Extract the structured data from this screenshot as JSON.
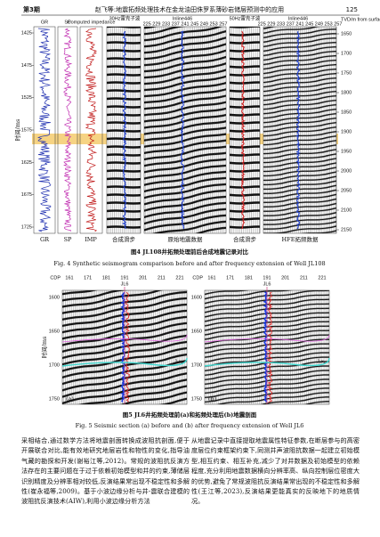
{
  "header": {
    "issue": "第3期",
    "running_title": "赵飞等:地震拓频处理技术在金龙油田侏罗系薄砂岩储层预测中的应用",
    "page": "125"
  },
  "figure4": {
    "log_headers": [
      "GR",
      "SP",
      "Computed impedance"
    ],
    "top_labels": [
      "30Hz雷克子波",
      "Inline446",
      "50Hz雷克子波",
      "Inline446"
    ],
    "trace_numbers": [
      "225 229 233 237 241 245 249 253 257",
      "225 229 233 237 241 245 249 253 257"
    ],
    "left_axis_title": "时间/ms",
    "left_ticks": [
      "1425",
      "1475",
      "1525",
      "1575",
      "1625",
      "1675",
      "1725"
    ],
    "right_axis_title": "TVD/m from surface",
    "right_ticks": [
      "1650",
      "1700",
      "1750",
      "1800",
      "1850",
      "1900",
      "1950",
      "2000",
      "2050",
      "2100",
      "2150"
    ],
    "bottom_labels": [
      "GR",
      "SP",
      "IMP",
      "合成滑步",
      "原始地震数据",
      "合成滑步",
      "HFE拓频数据"
    ],
    "caption_cn": "图4 JL108井拓频处理前后合成地震记录对比",
    "caption_en": "Fig. 4 Synthetic seismogram comparison before and after frequency extension of Well JL108"
  },
  "figure5": {
    "cdp_label": "CDP",
    "cdp_ticks": [
      "161",
      "171",
      "181",
      "191",
      "201",
      "211",
      "221"
    ],
    "well": "JL6",
    "y_title": "时间/ms",
    "y_ticks": [
      "1600",
      "1650",
      "1700",
      "1750"
    ],
    "panels": [
      "(a)",
      "(b)"
    ],
    "horizon": "J₂x₁",
    "caption_cn": "图5 JL6井拓频处理前(a)和拓频处理后(b)地震剖面",
    "caption_en": "Fig. 5 Seismic section (a) before and (b) after frequency extension of Well JL6"
  },
  "body": {
    "left": "采相结合,通过数学方法将地震剖面转换成波阻抗剖面,便于开展联合对比,能有效地研究地层岩性和物性的变化,指导油气藏的勘探和开发(谢裕江等,2012)。常规的波阻抗反演方法存在的主要问题在于过于依赖初始模型和井的约束,薄储层识别精度及分辨率相对较低,反演结果常出现不稳定性和多解性(崔永福等,2009)。基于小波边缘分析与井-震联合建模的波阻抗反演技术(AIW),利用小波边缘分析方法",
    "right": "从地震记录中直接提取地震属性特征参数,在断层参与的高密度层位约束框架约束下,同测井声波阻抗数据一起建立初始模型,相互约束、相互补充,减少了对井数据及初始模型的依赖程度,充分利用地震数据横向分辨率高、纵向控制层位密度大的优势,避免了常规波阻抗反演结果常出现的不稳定性和多解性(王江等,2023),反演结果更能真实的反映地下的地质情况。"
  }
}
